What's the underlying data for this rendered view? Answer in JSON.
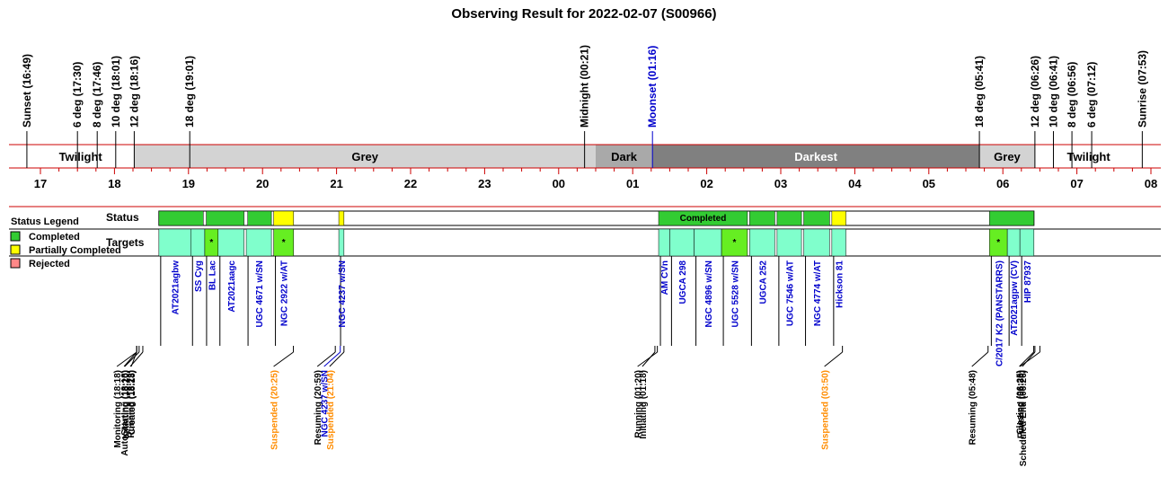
{
  "chart_data": {
    "type": "timeline",
    "title": "Observing Result for 2022-02-07 (S00966)",
    "colors": {
      "completed": "#33cc33",
      "partial": "#ffff00",
      "rejected": "#ff8888",
      "target_bg": "#80ffcc",
      "target_partial_bg": "#66ee22",
      "grey_phase": "#d3d3d3",
      "dark_phase": "#a9a9a9",
      "darkest_phase": "#808080",
      "twilight_phase": "#ffffff",
      "axis_red": "#cc0000",
      "event_orange": "#ff8c00",
      "moon_blue": "#0000cc"
    },
    "x_axis": {
      "unit": "hour",
      "range": [
        16.8,
        32.1
      ],
      "tick_labels": [
        {
          "value": 17,
          "label": "17"
        },
        {
          "value": 18,
          "label": "18"
        },
        {
          "value": 19,
          "label": "19"
        },
        {
          "value": 20,
          "label": "20"
        },
        {
          "value": 21,
          "label": "21"
        },
        {
          "value": 22,
          "label": "22"
        },
        {
          "value": 23,
          "label": "23"
        },
        {
          "value": 24,
          "label": "00"
        },
        {
          "value": 25,
          "label": "01"
        },
        {
          "value": 26,
          "label": "02"
        },
        {
          "value": 27,
          "label": "03"
        },
        {
          "value": 28,
          "label": "04"
        },
        {
          "value": 29,
          "label": "05"
        },
        {
          "value": 30,
          "label": "06"
        },
        {
          "value": 31,
          "label": "07"
        },
        {
          "value": 32,
          "label": "08"
        }
      ]
    },
    "time_markers": [
      {
        "t": 16.817,
        "label": "Sunset (16:49)",
        "color": "#000000"
      },
      {
        "t": 17.5,
        "label": "6 deg (17:30)",
        "color": "#000000"
      },
      {
        "t": 17.767,
        "label": "8 deg (17:46)",
        "color": "#000000"
      },
      {
        "t": 18.017,
        "label": "10 deg (18:01)",
        "color": "#000000"
      },
      {
        "t": 18.267,
        "label": "12 deg (18:16)",
        "color": "#000000"
      },
      {
        "t": 19.017,
        "label": "18 deg (19:01)",
        "color": "#000000"
      },
      {
        "t": 24.35,
        "label": "Midnight (00:21)",
        "color": "#000000"
      },
      {
        "t": 25.267,
        "label": "Moonset (01:16)",
        "color": "#0000cc"
      },
      {
        "t": 29.683,
        "label": "18 deg (05:41)",
        "color": "#000000"
      },
      {
        "t": 30.433,
        "label": "12 deg (06:26)",
        "color": "#000000"
      },
      {
        "t": 30.683,
        "label": "10 deg (06:41)",
        "color": "#000000"
      },
      {
        "t": 30.933,
        "label": "8 deg (06:56)",
        "color": "#000000"
      },
      {
        "t": 31.2,
        "label": "6 deg (07:12)",
        "color": "#000000"
      },
      {
        "t": 31.883,
        "label": "Sunrise (07:53)",
        "color": "#000000"
      }
    ],
    "phases": [
      {
        "start": 16.817,
        "end": 18.267,
        "label": "Twilight",
        "kind": "twilight"
      },
      {
        "start": 18.267,
        "end": 24.5,
        "label": "Grey",
        "kind": "grey"
      },
      {
        "start": 24.5,
        "end": 25.267,
        "label": "Dark",
        "kind": "dark"
      },
      {
        "start": 25.267,
        "end": 29.683,
        "label": "Darkest",
        "kind": "darkest"
      },
      {
        "start": 29.683,
        "end": 30.433,
        "label": "Grey",
        "kind": "grey"
      },
      {
        "start": 30.433,
        "end": 31.883,
        "label": "Twilight",
        "kind": "twilight"
      }
    ],
    "status_segments": [
      {
        "start": 18.6,
        "end": 19.2,
        "state": "completed",
        "label": ""
      },
      {
        "start": 19.24,
        "end": 19.75,
        "state": "completed",
        "label": ""
      },
      {
        "start": 19.8,
        "end": 20.12,
        "state": "completed",
        "label": ""
      },
      {
        "start": 20.15,
        "end": 20.42,
        "state": "partial",
        "label": ""
      },
      {
        "start": 21.03,
        "end": 21.1,
        "state": "partial",
        "label": ""
      },
      {
        "start": 25.35,
        "end": 26.55,
        "state": "completed",
        "label": "Completed"
      },
      {
        "start": 26.58,
        "end": 26.92,
        "state": "completed",
        "label": ""
      },
      {
        "start": 26.95,
        "end": 27.28,
        "state": "completed",
        "label": ""
      },
      {
        "start": 27.31,
        "end": 27.66,
        "state": "completed",
        "label": ""
      },
      {
        "start": 27.69,
        "end": 27.88,
        "state": "partial",
        "label": ""
      },
      {
        "start": 29.82,
        "end": 30.42,
        "state": "completed",
        "label": ""
      }
    ],
    "targets": [
      {
        "start": 18.6,
        "end": 19.03,
        "name": "AT2021agbw",
        "partial": false
      },
      {
        "start": 19.03,
        "end": 19.22,
        "name": "SS Cyg",
        "partial": false
      },
      {
        "start": 19.22,
        "end": 19.4,
        "name": "BL Lac",
        "partial": true
      },
      {
        "start": 19.4,
        "end": 19.75,
        "name": "AT2021aagc",
        "partial": false
      },
      {
        "start": 19.78,
        "end": 20.12,
        "name": "UGC 4671 w/SN",
        "partial": false
      },
      {
        "start": 20.15,
        "end": 20.42,
        "name": "NGC 2922 w/AT",
        "partial": true
      },
      {
        "start": 21.03,
        "end": 21.1,
        "name": "NGC 4237 w/SN",
        "partial": false
      },
      {
        "start": 25.35,
        "end": 25.5,
        "name": "AM CVn",
        "partial": false
      },
      {
        "start": 25.5,
        "end": 25.83,
        "name": "UGCA 298",
        "partial": false
      },
      {
        "start": 25.83,
        "end": 26.2,
        "name": "NGC 4896 w/SN",
        "partial": false
      },
      {
        "start": 26.2,
        "end": 26.55,
        "name": "UGC 5528 w/SN",
        "partial": true
      },
      {
        "start": 26.58,
        "end": 26.92,
        "name": "UGCA 252",
        "partial": false
      },
      {
        "start": 26.95,
        "end": 27.28,
        "name": "UGC 7546 w/AT",
        "partial": false
      },
      {
        "start": 27.31,
        "end": 27.66,
        "name": "NGC 4774 w/AT",
        "partial": false
      },
      {
        "start": 27.69,
        "end": 27.88,
        "name": "Hickson 81",
        "partial": false
      },
      {
        "start": 29.82,
        "end": 30.06,
        "name": "C/2017 K2 (PANSTARRS)",
        "partial": true
      },
      {
        "start": 30.06,
        "end": 30.23,
        "name": "AT2021agpw (CV)",
        "partial": false
      },
      {
        "start": 30.23,
        "end": 30.42,
        "name": "HIP 87937",
        "partial": false
      }
    ],
    "events": [
      {
        "t": 18.3,
        "label": "Monitoring (18:18)",
        "color": "#000000"
      },
      {
        "t": 18.3,
        "label": "AutoStarting (18:18)",
        "color": "#000000"
      },
      {
        "t": 18.3,
        "label": "Created (18:18)",
        "color": "#000000"
      },
      {
        "t": 18.333,
        "label": "Initiating (18:20)",
        "color": "#000000"
      },
      {
        "t": 18.383,
        "label": "Running (18:23)",
        "color": "#000000"
      },
      {
        "t": 20.417,
        "label": "Suspended (20:25)",
        "color": "#ff8c00"
      },
      {
        "t": 20.983,
        "label": "Resuming (20:59)",
        "color": "#000000"
      },
      {
        "t": 21.05,
        "label": "NGC 4237 w/SN",
        "color": "#0000cc"
      },
      {
        "t": 21.1,
        "label": "Suspended (21:04)",
        "color": "#ff8c00"
      },
      {
        "t": 25.3,
        "label": "Initiating (01:18)",
        "color": "#000000"
      },
      {
        "t": 25.333,
        "label": "Running (01:20)",
        "color": "#000000"
      },
      {
        "t": 27.833,
        "label": "Suspended (03:50)",
        "color": "#ff8c00"
      },
      {
        "t": 29.8,
        "label": "Resuming (05:48)",
        "color": "#000000"
      },
      {
        "t": 30.417,
        "label": "Closing (06:25)",
        "color": "#000000"
      },
      {
        "t": 30.433,
        "label": "Scheduled End (06:26)",
        "color": "#000000"
      },
      {
        "t": 30.5,
        "label": "Finished (06:30)",
        "color": "#000000"
      }
    ],
    "legend": {
      "title": "Status Legend",
      "placement": "left",
      "items": [
        {
          "label": "Completed",
          "state": "completed"
        },
        {
          "label": "Partially Completed",
          "state": "partial"
        },
        {
          "label": "Rejected",
          "state": "rejected"
        }
      ]
    },
    "row_labels": {
      "status": "Status",
      "targets": "Targets"
    }
  }
}
